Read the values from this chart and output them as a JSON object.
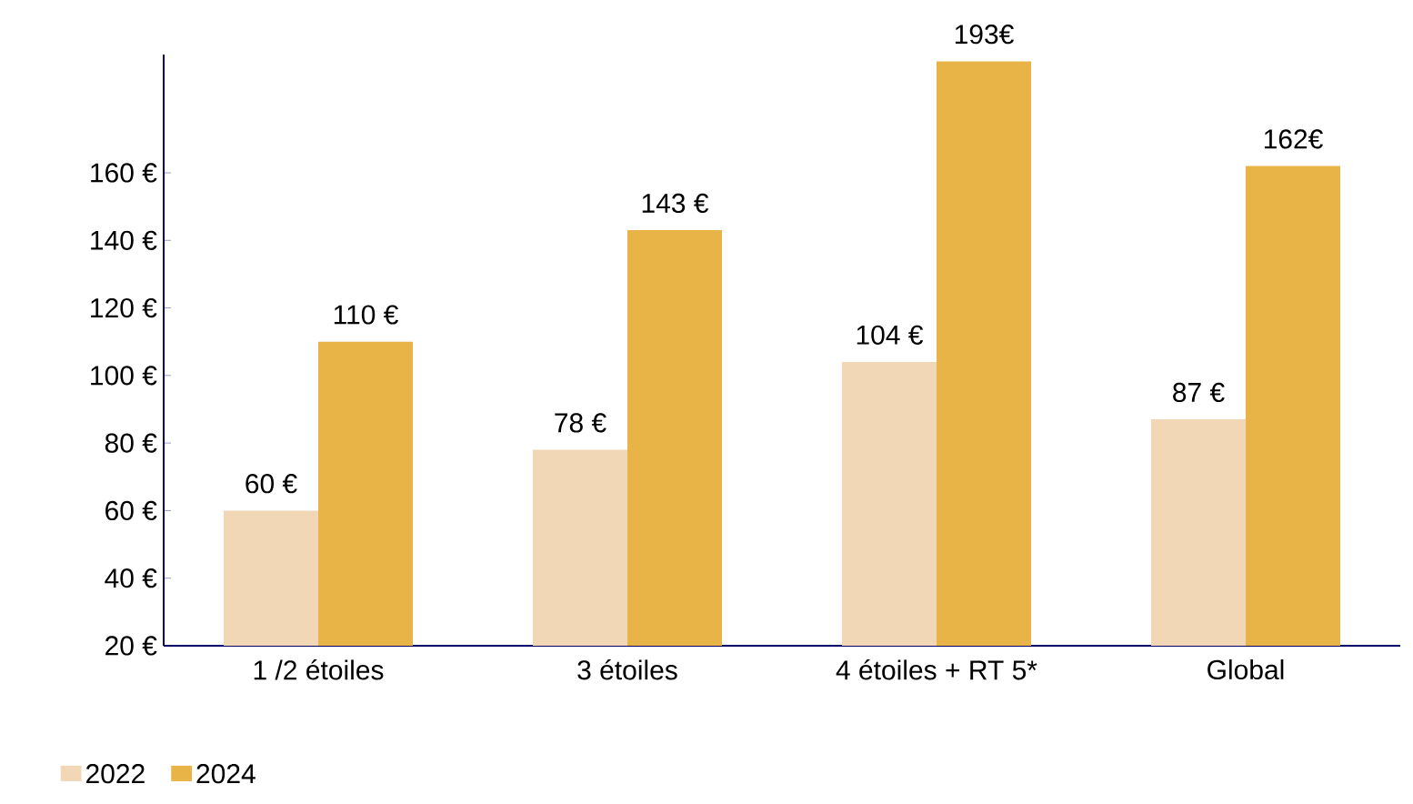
{
  "chart_data": {
    "type": "bar",
    "categories": [
      "1 /2 étoiles",
      "3 étoiles",
      "4 étoiles + RT 5*",
      "Global"
    ],
    "series": [
      {
        "name": "2022",
        "color": "#f2d7b6",
        "values": [
          60,
          78,
          104,
          87
        ],
        "value_labels": [
          "60 €",
          "78 €",
          "104 €",
          "87 €"
        ]
      },
      {
        "name": "2024",
        "color": "#e8b447",
        "values": [
          110,
          143,
          193,
          162
        ],
        "value_labels": [
          "110 €",
          "143 €",
          "193€",
          "162€"
        ]
      }
    ],
    "ylim": [
      20,
      195
    ],
    "yticks": [
      {
        "value": 20,
        "label": "20 €"
      },
      {
        "value": 40,
        "label": "40 €"
      },
      {
        "value": 60,
        "label": "60 €"
      },
      {
        "value": 80,
        "label": "80 €"
      },
      {
        "value": 100,
        "label": "100 €"
      },
      {
        "value": 120,
        "label": "120 €"
      },
      {
        "value": 140,
        "label": "140 €"
      },
      {
        "value": 160,
        "label": "160 €"
      }
    ],
    "grid": false,
    "legend": "bottom left"
  }
}
